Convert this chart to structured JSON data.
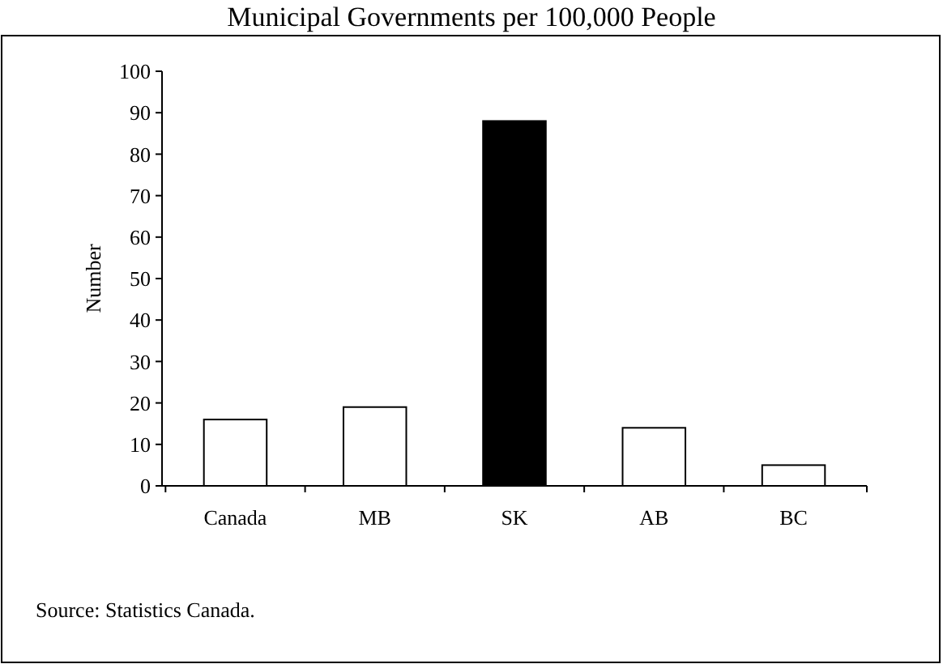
{
  "chart_data": {
    "type": "bar",
    "title": "Municipal Governments per 100,000 People",
    "ylabel": "Number",
    "categories": [
      "Canada",
      "MB",
      "SK",
      "AB",
      "BC"
    ],
    "values": [
      16,
      19,
      88,
      14,
      5
    ],
    "colors": [
      "#ffffff",
      "#ffffff",
      "#000000",
      "#ffffff",
      "#ffffff"
    ],
    "ylim": [
      0,
      100
    ],
    "yticks": [
      0,
      10,
      20,
      30,
      40,
      50,
      60,
      70,
      80,
      90,
      100
    ],
    "grid": false,
    "annotations": [
      "Source: Statistics Canada."
    ]
  }
}
